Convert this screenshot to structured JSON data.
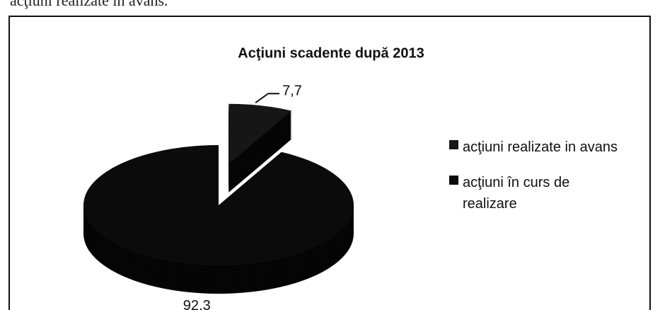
{
  "text_above": "acţiuni realizate în avans.",
  "chart_data": {
    "type": "pie",
    "title": "Acţiuni scadente după 2013",
    "categories": [
      "acţiuni realizate in avans",
      "acţiuni în curs de realizare"
    ],
    "values": [
      7.7,
      92.3
    ],
    "value_labels": [
      "7,7",
      "92,3"
    ],
    "colors": [
      "#161616",
      "#0b0b0b"
    ],
    "legend": "right",
    "explode": [
      true,
      false
    ]
  }
}
